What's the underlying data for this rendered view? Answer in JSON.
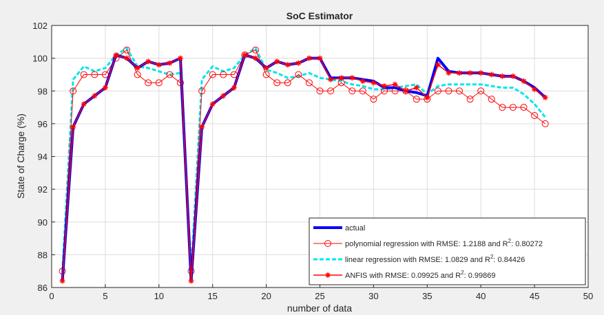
{
  "chart_data": {
    "type": "line",
    "title": "SoC Estimator",
    "xlabel": "number of data",
    "ylabel": "State of Charge (%)",
    "xlim": [
      0,
      50
    ],
    "ylim": [
      86,
      102
    ],
    "xticks": [
      0,
      5,
      10,
      15,
      20,
      25,
      30,
      35,
      40,
      45,
      50
    ],
    "yticks": [
      86,
      88,
      90,
      92,
      94,
      96,
      98,
      100,
      102
    ],
    "grid": true,
    "legend_position": "bottom-right",
    "x": [
      1,
      2,
      3,
      4,
      5,
      6,
      7,
      8,
      9,
      10,
      11,
      12,
      13,
      14,
      15,
      16,
      17,
      18,
      19,
      20,
      21,
      22,
      23,
      24,
      25,
      26,
      27,
      28,
      29,
      30,
      31,
      32,
      33,
      34,
      35,
      36,
      37,
      38,
      39,
      40,
      41,
      42,
      43,
      44,
      45,
      46
    ],
    "series": [
      {
        "name": "actual",
        "style": "actual",
        "color": "#0000ff",
        "values": [
          86.4,
          95.8,
          97.2,
          97.7,
          98.2,
          100.2,
          100.0,
          99.4,
          99.8,
          99.6,
          99.7,
          100.0,
          86.4,
          95.8,
          97.2,
          97.7,
          98.2,
          100.2,
          100.0,
          99.4,
          99.8,
          99.6,
          99.7,
          100.0,
          100.0,
          98.8,
          98.8,
          98.8,
          98.7,
          98.6,
          98.2,
          98.2,
          98.0,
          97.9,
          97.7,
          100.0,
          99.2,
          99.1,
          99.1,
          99.1,
          99.0,
          98.9,
          98.9,
          98.6,
          98.2,
          97.6
        ]
      },
      {
        "name": "polynomial regression with RMSE: 1.2188 and R",
        "name_suffix": ": 0.80272",
        "style": "polynomial",
        "color": "#ff0000",
        "values": [
          87.0,
          98.0,
          99.0,
          99.0,
          99.0,
          100.0,
          100.5,
          99.0,
          98.5,
          98.5,
          99.0,
          98.5,
          87.0,
          98.0,
          99.0,
          99.0,
          99.0,
          100.2,
          100.5,
          99.0,
          98.5,
          98.5,
          99.0,
          98.5,
          98.0,
          98.0,
          98.5,
          98.0,
          98.0,
          97.5,
          98.0,
          98.0,
          98.0,
          97.5,
          97.5,
          98.0,
          98.0,
          98.0,
          97.5,
          98.0,
          97.5,
          97.0,
          97.0,
          97.0,
          96.5,
          96.0
        ]
      },
      {
        "name": "linear regression with RMSE: 1.0829 and R",
        "name_suffix": ": 0.84426",
        "style": "linear",
        "color": "#00e5ee",
        "values": [
          87.0,
          98.7,
          99.5,
          99.2,
          99.4,
          100.2,
          100.6,
          99.5,
          99.4,
          99.2,
          99.0,
          99.1,
          87.0,
          98.7,
          99.5,
          99.2,
          99.4,
          100.2,
          100.6,
          99.3,
          99.1,
          98.8,
          98.9,
          99.1,
          98.8,
          98.7,
          98.6,
          98.4,
          98.3,
          98.1,
          98.1,
          98.2,
          98.3,
          98.4,
          97.8,
          98.3,
          98.4,
          98.4,
          98.4,
          98.4,
          98.3,
          98.2,
          98.2,
          97.8,
          97.2,
          96.4
        ]
      },
      {
        "name": "ANFIS with RMSE: 0.09925 and R",
        "name_suffix": ": 0.99869",
        "style": "anfis",
        "color": "#ff0000",
        "values": [
          86.4,
          95.8,
          97.2,
          97.7,
          98.2,
          100.2,
          100.0,
          99.4,
          99.8,
          99.6,
          99.7,
          100.0,
          86.4,
          95.8,
          97.2,
          97.7,
          98.2,
          100.2,
          100.0,
          99.4,
          99.8,
          99.6,
          99.7,
          100.0,
          100.0,
          98.7,
          98.8,
          98.8,
          98.6,
          98.5,
          98.3,
          98.4,
          98.0,
          98.2,
          97.6,
          99.6,
          99.1,
          99.1,
          99.1,
          99.1,
          99.0,
          98.9,
          98.9,
          98.6,
          98.1,
          97.6
        ]
      }
    ],
    "legend_superscript": "2"
  }
}
